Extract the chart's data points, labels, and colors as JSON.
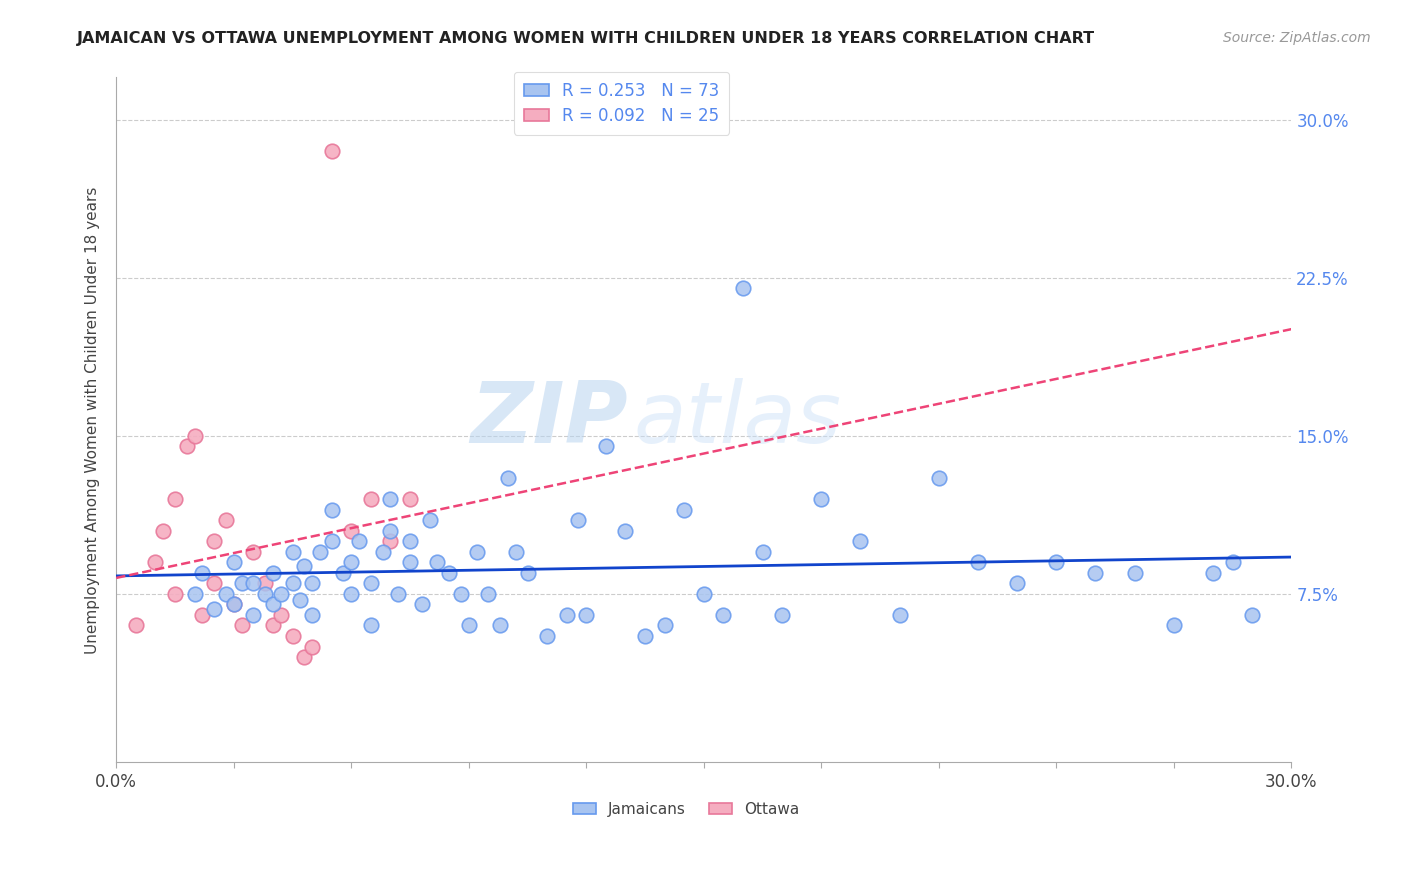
{
  "title": "JAMAICAN VS OTTAWA UNEMPLOYMENT AMONG WOMEN WITH CHILDREN UNDER 18 YEARS CORRELATION CHART",
  "source": "Source: ZipAtlas.com",
  "ylabel": "Unemployment Among Women with Children Under 18 years",
  "xlim": [
    0.0,
    0.3
  ],
  "ylim": [
    -0.005,
    0.32
  ],
  "jamaicans_R": 0.253,
  "jamaicans_N": 73,
  "ottawa_R": 0.092,
  "ottawa_N": 25,
  "blue_scatter_face": "#a8c4f0",
  "blue_scatter_edge": "#6699ee",
  "pink_scatter_face": "#f5adc0",
  "pink_scatter_edge": "#e8789a",
  "trend_blue": "#1144cc",
  "trend_pink": "#ee4477",
  "watermark_zip": "ZIP",
  "watermark_atlas": "atlas",
  "jamaicans_x": [
    0.02,
    0.022,
    0.025,
    0.028,
    0.03,
    0.03,
    0.032,
    0.035,
    0.035,
    0.038,
    0.04,
    0.04,
    0.042,
    0.045,
    0.045,
    0.047,
    0.048,
    0.05,
    0.05,
    0.052,
    0.055,
    0.055,
    0.058,
    0.06,
    0.06,
    0.062,
    0.065,
    0.065,
    0.068,
    0.07,
    0.07,
    0.072,
    0.075,
    0.075,
    0.078,
    0.08,
    0.082,
    0.085,
    0.088,
    0.09,
    0.092,
    0.095,
    0.098,
    0.1,
    0.102,
    0.105,
    0.11,
    0.115,
    0.118,
    0.12,
    0.125,
    0.13,
    0.135,
    0.14,
    0.145,
    0.15,
    0.155,
    0.16,
    0.165,
    0.17,
    0.18,
    0.19,
    0.2,
    0.21,
    0.22,
    0.23,
    0.24,
    0.25,
    0.26,
    0.27,
    0.28,
    0.285,
    0.29
  ],
  "jamaicans_y": [
    0.075,
    0.085,
    0.068,
    0.075,
    0.09,
    0.07,
    0.08,
    0.065,
    0.08,
    0.075,
    0.07,
    0.085,
    0.075,
    0.095,
    0.08,
    0.072,
    0.088,
    0.065,
    0.08,
    0.095,
    0.1,
    0.115,
    0.085,
    0.075,
    0.09,
    0.1,
    0.06,
    0.08,
    0.095,
    0.105,
    0.12,
    0.075,
    0.09,
    0.1,
    0.07,
    0.11,
    0.09,
    0.085,
    0.075,
    0.06,
    0.095,
    0.075,
    0.06,
    0.13,
    0.095,
    0.085,
    0.055,
    0.065,
    0.11,
    0.065,
    0.145,
    0.105,
    0.055,
    0.06,
    0.115,
    0.075,
    0.065,
    0.22,
    0.095,
    0.065,
    0.12,
    0.1,
    0.065,
    0.13,
    0.09,
    0.08,
    0.09,
    0.085,
    0.085,
    0.06,
    0.085,
    0.09,
    0.065
  ],
  "ottawa_x": [
    0.005,
    0.01,
    0.012,
    0.015,
    0.015,
    0.018,
    0.02,
    0.022,
    0.025,
    0.025,
    0.028,
    0.03,
    0.032,
    0.035,
    0.038,
    0.04,
    0.042,
    0.045,
    0.048,
    0.05,
    0.055,
    0.06,
    0.065,
    0.07,
    0.075
  ],
  "ottawa_y": [
    0.06,
    0.09,
    0.105,
    0.075,
    0.12,
    0.145,
    0.15,
    0.065,
    0.08,
    0.1,
    0.11,
    0.07,
    0.06,
    0.095,
    0.08,
    0.06,
    0.065,
    0.055,
    0.045,
    0.05,
    0.285,
    0.105,
    0.12,
    0.1,
    0.12
  ]
}
